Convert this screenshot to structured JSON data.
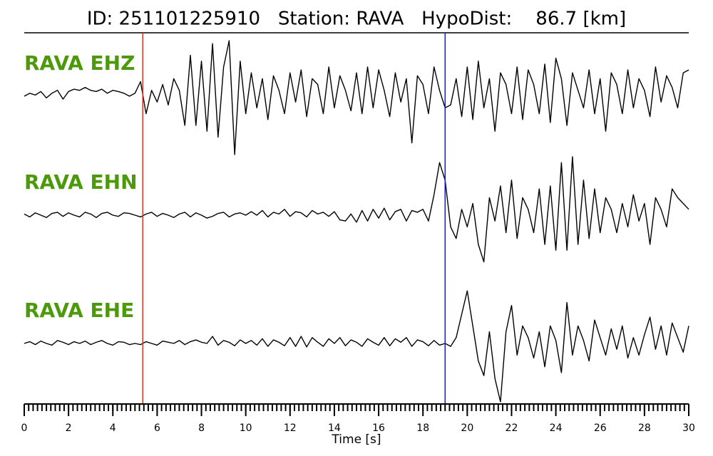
{
  "chart_data": {
    "type": "line",
    "title": "ID: 251101225910   Station: RAVA   HypoDist:    86.7 [km]",
    "x_label": "Time [s]",
    "xlim": [
      0,
      30
    ],
    "xticks": [
      0,
      2,
      4,
      6,
      8,
      10,
      12,
      14,
      16,
      18,
      20,
      22,
      24,
      26,
      28,
      30
    ],
    "minor_xticks": [
      0,
      0.2,
      0.4,
      0.6,
      0.8,
      1,
      1.2,
      1.4,
      1.6,
      1.8,
      2,
      2.2,
      2.4,
      2.6,
      2.8,
      3,
      3.2,
      3.4,
      3.6,
      3.8,
      4,
      4.2,
      4.4,
      4.6,
      4.8,
      5,
      5.2,
      5.4,
      5.6,
      5.8,
      6,
      6.2,
      6.4,
      6.6,
      6.8,
      7,
      7.2,
      7.4,
      7.6,
      7.8,
      8,
      8.2,
      8.4,
      8.6,
      8.8,
      9,
      9.2,
      9.4,
      9.6,
      9.8,
      10,
      10.2,
      10.4,
      10.6,
      10.8,
      11,
      11.2,
      11.4,
      11.6,
      11.8,
      12,
      12.2,
      12.4,
      12.6,
      12.8,
      13,
      13.2,
      13.4,
      13.6,
      13.8,
      14,
      14.2,
      14.4,
      14.6,
      14.8,
      15,
      15.2,
      15.4,
      15.6,
      15.8,
      16,
      16.2,
      16.4,
      16.6,
      16.8,
      17,
      17.2,
      17.4,
      17.6,
      17.8,
      18,
      18.2,
      18.4,
      18.6,
      18.8,
      19,
      19.2,
      19.4,
      19.6,
      19.8,
      20,
      20.2,
      20.4,
      20.6,
      20.8,
      21,
      21.2,
      21.4,
      21.6,
      21.8,
      22,
      22.2,
      22.4,
      22.6,
      22.8,
      23,
      23.2,
      23.4,
      23.6,
      23.8,
      24,
      24.2,
      24.4,
      24.6,
      24.8,
      25,
      25.2,
      25.4,
      25.6,
      25.8,
      26,
      26.2,
      26.4,
      26.6,
      26.8,
      27,
      27.2,
      27.4,
      27.6,
      27.8,
      28,
      28.2,
      28.4,
      28.6,
      28.8,
      29,
      29.2,
      29.4,
      29.6,
      29.8,
      30
    ],
    "ylim": [
      -1,
      1
    ],
    "label_color": "#4c9a0a",
    "markers": [
      {
        "x": 5.35,
        "color": "#e03020"
      },
      {
        "x": 19.0,
        "color": "#2020b0"
      }
    ],
    "x": [
      0,
      0.25,
      0.5,
      0.75,
      1,
      1.25,
      1.5,
      1.75,
      2,
      2.25,
      2.5,
      2.75,
      3,
      3.25,
      3.5,
      3.75,
      4,
      4.25,
      4.5,
      4.75,
      5,
      5.25,
      5.5,
      5.75,
      6,
      6.25,
      6.5,
      6.75,
      7,
      7.25,
      7.5,
      7.75,
      8,
      8.25,
      8.5,
      8.75,
      9,
      9.25,
      9.5,
      9.75,
      10,
      10.25,
      10.5,
      10.75,
      11,
      11.25,
      11.5,
      11.75,
      12,
      12.25,
      12.5,
      12.75,
      13,
      13.25,
      13.5,
      13.75,
      14,
      14.25,
      14.5,
      14.75,
      15,
      15.25,
      15.5,
      15.75,
      16,
      16.25,
      16.5,
      16.75,
      17,
      17.25,
      17.5,
      17.75,
      18,
      18.25,
      18.5,
      18.75,
      19,
      19.25,
      19.5,
      19.75,
      20,
      20.25,
      20.5,
      20.75,
      21,
      21.25,
      21.5,
      21.75,
      22,
      22.25,
      22.5,
      22.75,
      23,
      23.25,
      23.5,
      23.75,
      24,
      24.25,
      24.5,
      24.75,
      25,
      25.25,
      25.5,
      25.75,
      26,
      26.25,
      26.5,
      26.75,
      27,
      27.25,
      27.5,
      27.75,
      28,
      28.25,
      28.5,
      28.75,
      29,
      29.25,
      29.5,
      29.75,
      30
    ],
    "series": [
      {
        "name": "RAVA EHZ",
        "color": "#000000",
        "values": [
          0.0,
          0.05,
          0.02,
          0.08,
          -0.03,
          0.05,
          0.1,
          -0.05,
          0.08,
          0.12,
          0.1,
          0.15,
          0.1,
          0.08,
          0.12,
          0.05,
          0.1,
          0.08,
          0.05,
          0.0,
          0.05,
          0.25,
          -0.3,
          0.1,
          -0.1,
          0.2,
          -0.15,
          0.3,
          0.1,
          -0.5,
          0.7,
          -0.5,
          0.6,
          -0.6,
          0.9,
          -0.7,
          0.5,
          0.95,
          -1.0,
          0.6,
          -0.3,
          0.4,
          -0.2,
          0.3,
          -0.4,
          0.35,
          0.1,
          -0.3,
          0.4,
          -0.1,
          0.45,
          -0.35,
          0.3,
          0.2,
          -0.3,
          0.5,
          -0.2,
          0.35,
          0.1,
          -0.25,
          0.4,
          -0.3,
          0.5,
          -0.2,
          0.45,
          0.1,
          -0.35,
          0.4,
          -0.1,
          0.3,
          -0.8,
          0.35,
          0.2,
          -0.3,
          0.5,
          0.1,
          -0.2,
          -0.15,
          0.3,
          -0.35,
          0.5,
          -0.4,
          0.6,
          -0.2,
          0.3,
          -0.6,
          0.4,
          0.2,
          -0.3,
          0.5,
          -0.4,
          0.45,
          0.2,
          -0.3,
          0.55,
          -0.45,
          0.65,
          0.3,
          -0.5,
          0.4,
          0.1,
          -0.2,
          0.45,
          -0.3,
          0.3,
          -0.6,
          0.4,
          0.2,
          -0.3,
          0.45,
          -0.2,
          0.3,
          0.1,
          -0.35,
          0.5,
          -0.1,
          0.35,
          0.15,
          -0.2,
          0.4,
          0.45
        ]
      },
      {
        "name": "RAVA EHN",
        "color": "#000000",
        "values": [
          0.02,
          -0.03,
          0.04,
          0.0,
          -0.04,
          0.03,
          0.05,
          -0.02,
          0.04,
          0.0,
          -0.03,
          0.05,
          0.02,
          -0.04,
          0.03,
          0.05,
          0.0,
          -0.02,
          0.04,
          0.03,
          0.0,
          -0.03,
          0.02,
          0.05,
          -0.02,
          0.03,
          0.0,
          -0.04,
          0.02,
          0.05,
          -0.03,
          0.04,
          0.0,
          -0.05,
          -0.02,
          0.03,
          0.05,
          -0.03,
          0.02,
          0.04,
          0.0,
          0.06,
          0.0,
          0.08,
          -0.03,
          0.05,
          0.02,
          0.1,
          -0.02,
          0.06,
          0.04,
          -0.03,
          0.08,
          0.02,
          0.05,
          -0.02,
          0.06,
          -0.08,
          -0.1,
          0.02,
          -0.12,
          0.08,
          -0.1,
          0.1,
          -0.05,
          0.12,
          -0.08,
          0.06,
          0.1,
          -0.1,
          0.08,
          0.05,
          0.1,
          -0.1,
          0.35,
          0.9,
          0.6,
          -0.2,
          -0.4,
          0.1,
          -0.2,
          0.2,
          -0.5,
          -0.8,
          0.3,
          -0.1,
          0.5,
          -0.3,
          0.6,
          -0.4,
          0.3,
          0.1,
          -0.3,
          0.45,
          -0.5,
          0.5,
          -0.6,
          0.9,
          -0.6,
          1.0,
          -0.5,
          0.6,
          -0.4,
          0.45,
          -0.3,
          0.3,
          0.1,
          -0.3,
          0.2,
          -0.2,
          0.35,
          -0.1,
          0.2,
          -0.5,
          0.3,
          0.1,
          -0.2,
          0.45,
          0.3,
          0.2,
          0.1
        ]
      },
      {
        "name": "RAVA EHE",
        "color": "#000000",
        "values": [
          0.0,
          0.03,
          -0.02,
          0.04,
          0.0,
          -0.03,
          0.05,
          0.02,
          -0.02,
          0.03,
          0.0,
          0.04,
          -0.02,
          0.02,
          0.05,
          0.0,
          -0.03,
          0.03,
          0.02,
          -0.02,
          0.0,
          -0.02,
          0.03,
          0.0,
          -0.03,
          0.04,
          0.02,
          0.0,
          0.05,
          -0.02,
          0.03,
          0.06,
          0.02,
          0.0,
          0.12,
          -0.03,
          0.05,
          0.02,
          -0.04,
          0.06,
          0.0,
          0.05,
          -0.03,
          0.08,
          -0.05,
          0.06,
          0.02,
          -0.04,
          0.1,
          -0.05,
          0.12,
          -0.06,
          0.1,
          0.02,
          -0.05,
          0.08,
          0.0,
          0.1,
          -0.04,
          0.06,
          0.02,
          -0.05,
          0.08,
          0.02,
          -0.03,
          0.1,
          -0.04,
          0.08,
          0.02,
          0.1,
          -0.05,
          0.06,
          0.03,
          -0.04,
          0.05,
          -0.03,
          0.0,
          -0.05,
          0.1,
          0.5,
          0.9,
          0.3,
          -0.3,
          -0.55,
          0.2,
          -0.6,
          -1.0,
          0.2,
          0.65,
          -0.2,
          0.3,
          0.1,
          -0.25,
          0.2,
          -0.4,
          0.3,
          0.05,
          -0.5,
          0.7,
          -0.2,
          0.3,
          0.05,
          -0.3,
          0.4,
          0.1,
          -0.2,
          0.25,
          -0.1,
          0.3,
          -0.25,
          0.1,
          -0.2,
          0.15,
          0.45,
          -0.1,
          0.3,
          -0.2,
          0.35,
          0.1,
          -0.15,
          0.3
        ]
      }
    ]
  }
}
